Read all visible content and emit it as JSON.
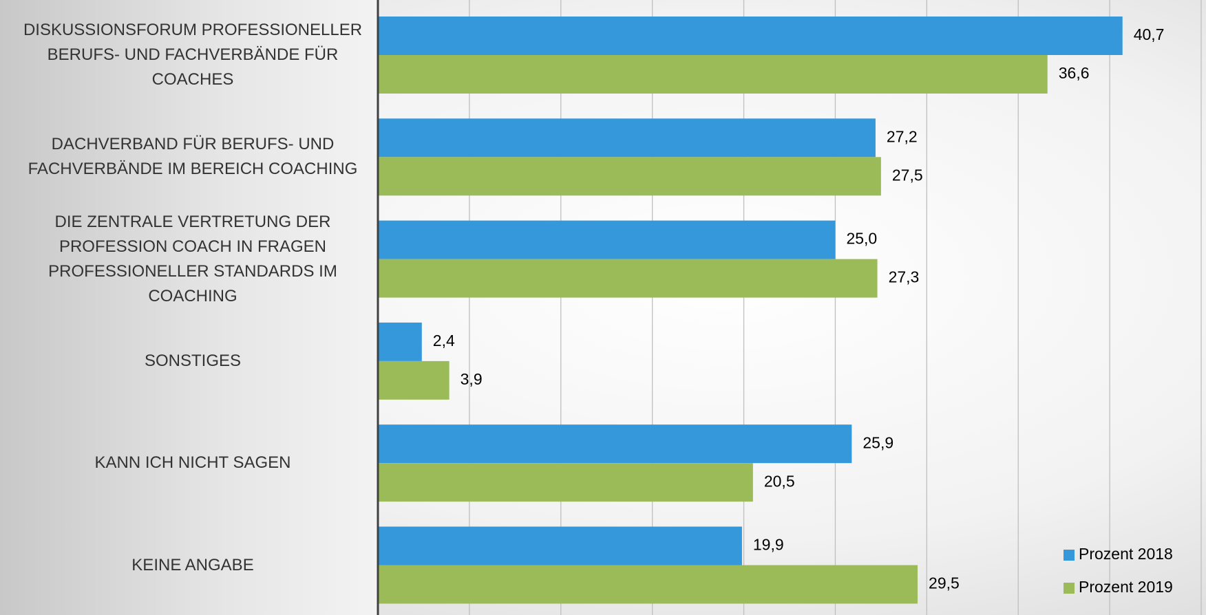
{
  "chart_data": {
    "type": "bar",
    "orientation": "horizontal",
    "categories": [
      "DISKUSSIONSFORUM PROFESSIONELLER BERUFS- UND FACHVERBÄNDE FÜR COACHES",
      "DACHVERBAND FÜR BERUFS- UND FACHVERBÄNDE IM BEREICH COACHING",
      "DIE ZENTRALE VERTRETUNG DER PROFESSION COACH IN FRAGEN PROFESSIONELLER STANDARDS IM COACHING",
      "SONSTIGES",
      "KANN ICH NICHT SAGEN",
      "KEINE ANGABE"
    ],
    "series": [
      {
        "name": "Prozent 2018",
        "color": "#3498db",
        "values": [
          40.7,
          27.2,
          25.0,
          2.4,
          25.9,
          19.9
        ],
        "value_labels": [
          "40,7",
          "27,2",
          "25,0",
          "2,4",
          "25,9",
          "19,9"
        ]
      },
      {
        "name": "Prozent 2019",
        "color": "#9bbb59",
        "values": [
          36.6,
          27.5,
          27.3,
          3.9,
          20.5,
          29.5
        ],
        "value_labels": [
          "36,6",
          "27,5",
          "27,3",
          "3,9",
          "20,5",
          "29,5"
        ]
      }
    ],
    "xlim": [
      0,
      45
    ],
    "xticks": [
      0,
      5,
      10,
      15,
      20,
      25,
      30,
      35,
      40,
      45
    ],
    "grid": true,
    "legend": "bottom-right"
  }
}
